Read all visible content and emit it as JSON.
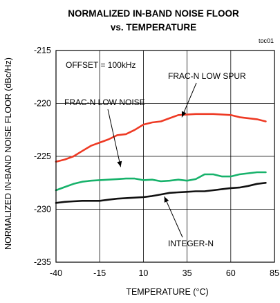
{
  "chart_data": {
    "type": "line",
    "title_line1": "NORMALIZED IN-BAND NOISE FLOOR",
    "title_line2": "vs. TEMPERATURE",
    "figure_code": "toc01",
    "xlabel": "TEMPERATURE (°C)",
    "ylabel": "NORMALIZED IN-BAND NOISE FLOOR (dBc/Hz)",
    "xlim": [
      -40,
      85
    ],
    "ylim": [
      -235,
      -215
    ],
    "xticks": [
      -40,
      -15,
      10,
      35,
      60,
      85
    ],
    "yticks": [
      -215,
      -220,
      -225,
      -230,
      -235
    ],
    "xtick_labels": [
      "-40",
      "-15",
      "10",
      "35",
      "60",
      "85"
    ],
    "ytick_labels": [
      "-215",
      "-220",
      "-225",
      "-230",
      "-235"
    ],
    "grid": true,
    "condition_text": "OFFSET = 100kHz",
    "series": [
      {
        "name": "FRAC-N LOW SPUR",
        "color": "#ee3a24",
        "x": [
          -40,
          -35,
          -30,
          -25,
          -20,
          -15,
          -10,
          -5,
          0,
          5,
          10,
          15,
          20,
          25,
          30,
          35,
          40,
          45,
          50,
          55,
          60,
          65,
          70,
          75,
          80
        ],
        "y": [
          -225.5,
          -225.3,
          -225.0,
          -224.5,
          -224.0,
          -223.7,
          -223.4,
          -223.0,
          -222.9,
          -222.5,
          -222.0,
          -221.8,
          -221.7,
          -221.4,
          -221.1,
          -221.05,
          -221.0,
          -221.0,
          -221.0,
          -221.05,
          -221.1,
          -221.3,
          -221.4,
          -221.5,
          -221.7
        ]
      },
      {
        "name": "FRAC-N LOW NOISE",
        "color": "#17b26b",
        "x": [
          -40,
          -35,
          -30,
          -25,
          -20,
          -15,
          -10,
          -5,
          0,
          5,
          10,
          15,
          20,
          25,
          30,
          35,
          40,
          45,
          50,
          55,
          60,
          65,
          70,
          75,
          80
        ],
        "y": [
          -228.2,
          -227.9,
          -227.6,
          -227.4,
          -227.3,
          -227.25,
          -227.2,
          -227.15,
          -227.1,
          -227.1,
          -227.25,
          -227.2,
          -227.35,
          -227.3,
          -227.2,
          -227.3,
          -227.15,
          -226.7,
          -226.7,
          -226.9,
          -226.9,
          -226.7,
          -226.6,
          -226.5,
          -226.5
        ]
      },
      {
        "name": "INTEGER-N",
        "color": "#111111",
        "x": [
          -40,
          -35,
          -30,
          -25,
          -20,
          -15,
          -10,
          -5,
          0,
          5,
          10,
          15,
          20,
          25,
          30,
          35,
          40,
          45,
          50,
          55,
          60,
          65,
          70,
          75,
          80
        ],
        "y": [
          -229.4,
          -229.3,
          -229.25,
          -229.2,
          -229.2,
          -229.2,
          -229.1,
          -229.0,
          -228.95,
          -228.9,
          -228.85,
          -228.75,
          -228.6,
          -228.45,
          -228.4,
          -228.35,
          -228.3,
          -228.3,
          -228.2,
          -228.1,
          -228.0,
          -227.95,
          -227.8,
          -227.6,
          -227.5
        ]
      }
    ],
    "annotations": [
      {
        "text": "FRAC-N LOW SPUR",
        "points_to_x": 32,
        "points_to_y": -221.3
      },
      {
        "text": "FRAC-N LOW NOISE",
        "points_to_x": -3,
        "points_to_y": -226.0
      },
      {
        "text": "INTEGER-N",
        "points_to_x": 22,
        "points_to_y": -228.8
      }
    ]
  }
}
